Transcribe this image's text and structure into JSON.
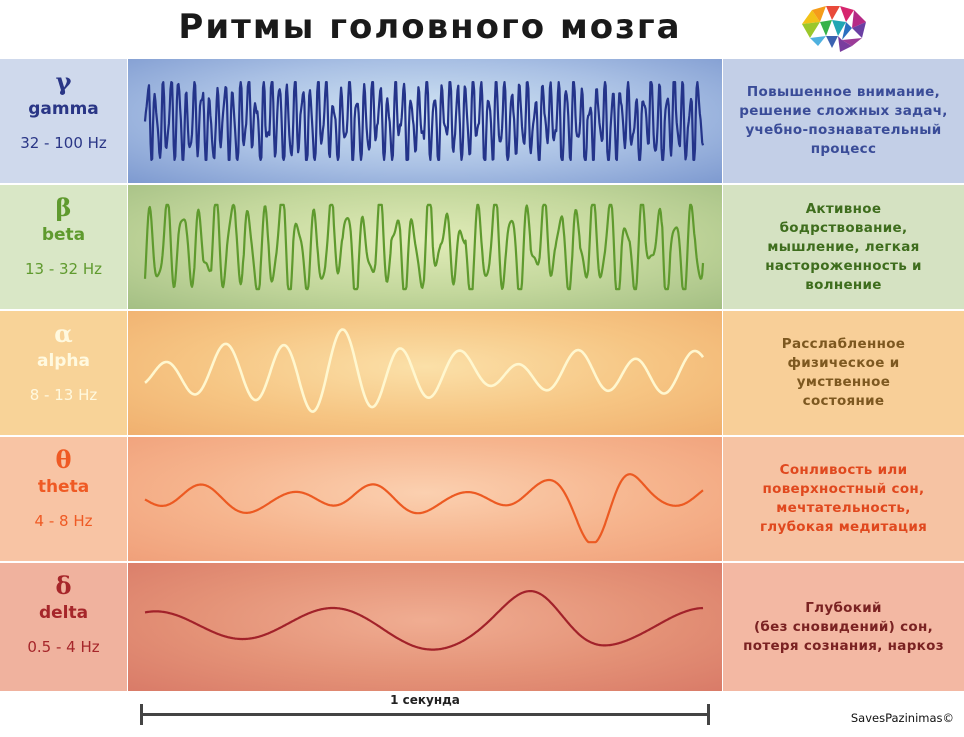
{
  "title": "Ритмы головного мозга",
  "logo_icon": "brain-mosaic-icon",
  "bands": [
    {
      "key": "gamma",
      "greek": "γ",
      "name": "gamma",
      "freq": "32 - 100 Hz",
      "description": "Повышенное внимание,\nрешение сложных задач,\nучебно-познавательный\nпроцесс",
      "wave_color": "#24348a",
      "stroke_width": 2.2,
      "cycles": 72,
      "amplitude": 0.72,
      "seed": 11
    },
    {
      "key": "beta",
      "greek": "β",
      "name": "beta",
      "freq": "13 - 32 Hz",
      "description": "Активное\nбодрствование,\nмышление, легкая\nнастороженность и\nволнение",
      "wave_color": "#5f9a2e",
      "stroke_width": 2.2,
      "cycles": 34,
      "amplitude": 0.78,
      "seed": 23
    },
    {
      "key": "alpha",
      "greek": "α",
      "name": "alpha",
      "freq": "8 - 13 Hz",
      "description": "Расслабленное\nфизическое и\nумственное\nсостояние",
      "wave_color": "#fff7cf",
      "stroke_width": 2.6,
      "cycles": 9.5,
      "amplitude": 0.85,
      "seed": 5,
      "envelope": "alpha"
    },
    {
      "key": "theta",
      "greek": "θ",
      "name": "theta",
      "freq": "4 - 8 Hz",
      "description": "Сонливость или\nповерхностный сон,\nмечтательность,\nглубокая медитация",
      "wave_color": "#ec5a22",
      "stroke_width": 2.2,
      "cycles": 6.5,
      "amplitude": 0.8,
      "seed": 7,
      "envelope": "theta"
    },
    {
      "key": "delta",
      "greek": "δ",
      "name": "delta",
      "freq": "0.5 - 4 Hz",
      "description": "Глубокий\n(без сновидений) сон,\nпотеря сознания, наркоз",
      "wave_color": "#a2222a",
      "stroke_width": 2.2,
      "cycles": 3,
      "amplitude": 0.8,
      "seed": 3,
      "envelope": "delta"
    }
  ],
  "timebar": {
    "label": "1 секунда"
  },
  "copyright": "SavesPazinimas©"
}
